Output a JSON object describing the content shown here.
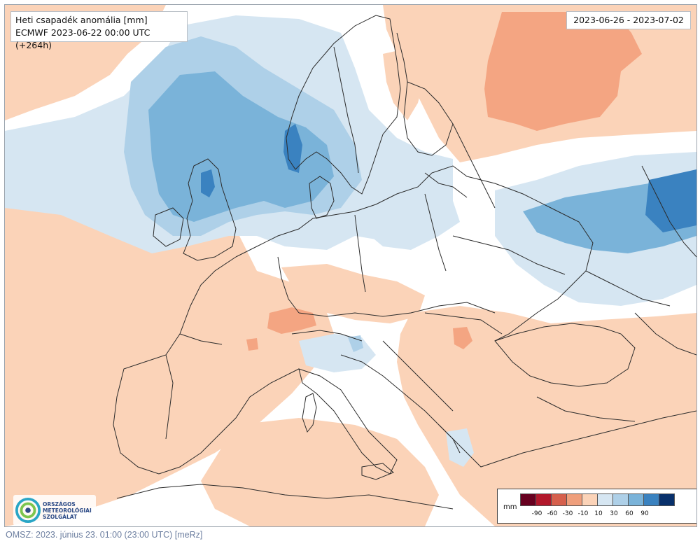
{
  "title": {
    "line1": "Heti csapadék anomália [mm]",
    "line2": "ECMWF 2023-06-22 00:00 UTC (+264h)"
  },
  "date_range": "2023-06-26 - 2023-07-02",
  "legend": {
    "unit": "mm",
    "ticks": [
      "-90",
      "-60",
      "-30",
      "-10",
      "10",
      "30",
      "60",
      "90"
    ],
    "colors": [
      "#67001f",
      "#b2182b",
      "#d6604d",
      "#ef9f7c",
      "#fbd3b8",
      "#d6e6f2",
      "#aed0e8",
      "#7ab3d9",
      "#3a82c0",
      "#08306b"
    ]
  },
  "logo": {
    "lines": [
      "ORSZÁGOS",
      "METEOROLÓGIAI",
      "SZOLGÁLAT"
    ]
  },
  "footer": "OMSZ: 2023. június 23. 01:00 (23:00 UTC) [meRz]",
  "colors": {
    "light_orange": "#fbd3b8",
    "orange": "#f4a582",
    "light_blue": "#d6e6f2",
    "mid_blue": "#aed0e8",
    "blue": "#7ab3d9",
    "dark_blue": "#3a82c0",
    "border_line": "#2b2b2b"
  }
}
